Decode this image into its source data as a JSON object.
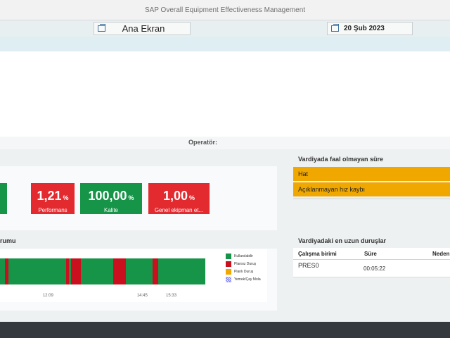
{
  "window": {
    "title": "SAP Overall Equipment Effectiveness Management"
  },
  "header": {
    "screen_button": "Ana Ekran",
    "date_button": "20 Şub 2023"
  },
  "operator_label": "Operatör:",
  "kpis": [
    {
      "value": "1,21",
      "unit": "%",
      "label": "Performans",
      "color": "#e32a2f"
    },
    {
      "value": "100,00",
      "unit": "%",
      "label": "Kalite",
      "color": "#169448"
    },
    {
      "value": "1,00",
      "unit": "%",
      "label": "Genel ekipman et...",
      "color": "#e32a2f"
    }
  ],
  "timeline": {
    "title_fragment": "rumu",
    "start": "10:50",
    "end": "16:30",
    "segments": [
      {
        "from": "10:50",
        "to": "10:58",
        "status": "Kullanılabilir"
      },
      {
        "from": "10:58",
        "to": "11:04",
        "status": "Plansız Duruş"
      },
      {
        "from": "11:04",
        "to": "12:40",
        "status": "Kullanılabilir"
      },
      {
        "from": "12:40",
        "to": "12:44",
        "status": "Plansız Duruş"
      },
      {
        "from": "12:44",
        "to": "12:48",
        "status": "Kullanılabilir"
      },
      {
        "from": "12:48",
        "to": "13:04",
        "status": "Plansız Duruş"
      },
      {
        "from": "13:04",
        "to": "13:58",
        "status": "Kullanılabilir"
      },
      {
        "from": "13:58",
        "to": "14:18",
        "status": "Plansız Duruş"
      },
      {
        "from": "14:18",
        "to": "15:03",
        "status": "Kullanılabilir"
      },
      {
        "from": "15:03",
        "to": "15:12",
        "status": "Plansız Duruş"
      },
      {
        "from": "15:12",
        "to": "16:30",
        "status": "Kullanılabilir"
      }
    ],
    "ticks": [
      {
        "time": "12:09",
        "label": "12:09"
      },
      {
        "time": "14:45",
        "label": "14:45"
      },
      {
        "time": "15:33",
        "label": "15:33"
      }
    ],
    "legend": [
      {
        "label": "Kullanılabilir",
        "color": "#169448"
      },
      {
        "label": "Plansız Duruş",
        "color": "#c8101e"
      },
      {
        "label": "Planlı Duruş",
        "color": "#f0a800"
      },
      {
        "label": "Yemek/Çay Mola",
        "color": "#6a6ae8"
      }
    ]
  },
  "inactive": {
    "title": "Vardiyada faal olmayan süre",
    "items": [
      "Hat",
      "Açıklanmayan hız kaybı"
    ]
  },
  "longest": {
    "title": "Vardiyadaki en uzun duruşlar",
    "columns": [
      "Çalışma birimi",
      "Süre",
      "Neden"
    ],
    "rows": [
      {
        "unit": "PRES0",
        "duration": "00:05:22"
      }
    ]
  }
}
